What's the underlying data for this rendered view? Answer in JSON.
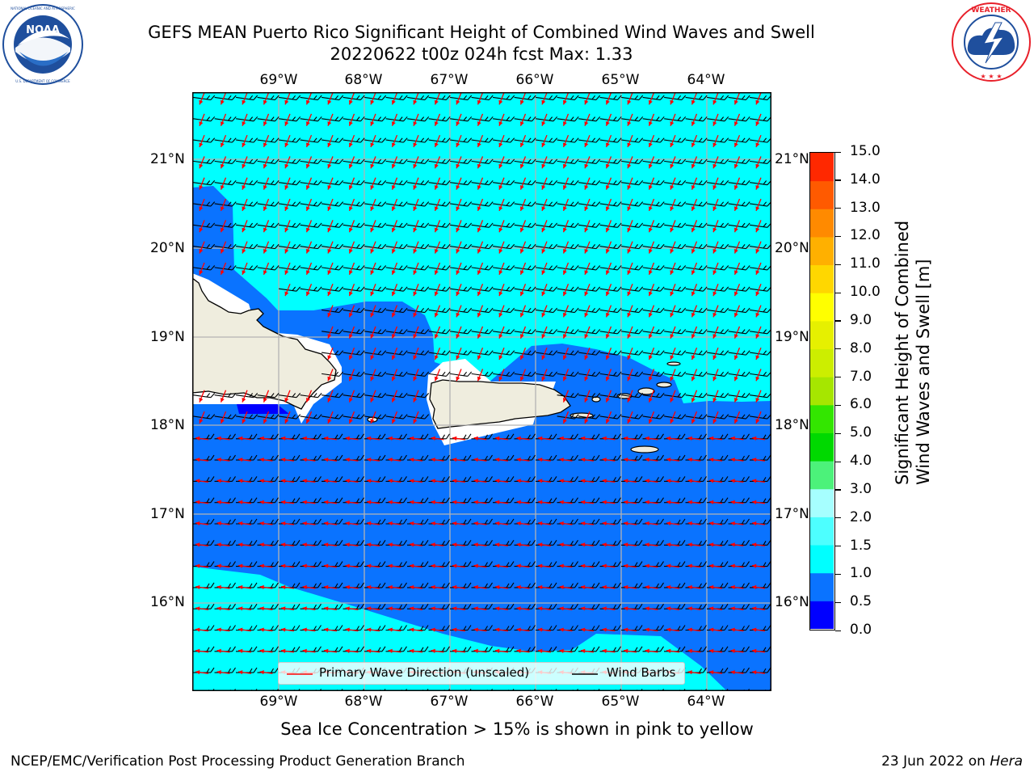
{
  "header": {
    "title_line1": "GEFS MEAN Puerto Rico Significant Height of Combined Wind Waves and Swell",
    "title_line2": "20220622 t00z 024h fcst   Max: 1.33"
  },
  "logos": {
    "left": {
      "name": "NOAA",
      "ring_text": "NATIONAL OCEANIC AND ATMOSPHERIC ADMINISTRATION U.S. DEPARTMENT OF COMMERCE",
      "color": "#1f4f9d"
    },
    "right": {
      "name": "NATIONAL WEATHER SERVICE",
      "color": "#e8202a"
    }
  },
  "map": {
    "lon_labels": [
      "69°W",
      "68°W",
      "67°W",
      "66°W",
      "65°W",
      "64°W"
    ],
    "lat_labels": [
      "21°N",
      "20°N",
      "19°N",
      "18°N",
      "17°N",
      "16°N"
    ],
    "legend": {
      "wave_direction": "Primary Wave Direction (unscaled)",
      "wind_barbs": "Wind Barbs"
    },
    "colors": {
      "land": "#efedde",
      "band_0_5_1_0": "#0a73ff",
      "band_1_0_1_5": "#00ffff",
      "arrow": "#ff0000",
      "barb": "#000000",
      "grid": "#b3b3b3"
    }
  },
  "colorbar": {
    "title_line1": "Significant Height of Combined",
    "title_line2": "Wind Waves and Swell [m]",
    "ticks": [
      "15.0",
      "14.0",
      "13.0",
      "12.0",
      "11.0",
      "10.0",
      "9.0",
      "8.0",
      "7.0",
      "6.0",
      "5.0",
      "4.0",
      "3.0",
      "2.0",
      "1.5",
      "1.0",
      "0.5",
      "0.0"
    ],
    "colors_bottom_to_top": [
      "#0000ff",
      "#0a73ff",
      "#00ffff",
      "#4dffff",
      "#a6ffff",
      "#4cf27a",
      "#00d900",
      "#33e600",
      "#a6e600",
      "#ccee00",
      "#e6f000",
      "#ffff00",
      "#ffd700",
      "#ffb000",
      "#ff8a00",
      "#ff5a00",
      "#ff2800"
    ]
  },
  "footer": {
    "note": "Sea Ice Concentration > 15% is shown in pink to yellow",
    "left": "NCEP/EMC/Verification Post Processing Product Generation Branch",
    "right_prefix": "23 Jun 2022 on ",
    "right_machine": "Hera"
  }
}
